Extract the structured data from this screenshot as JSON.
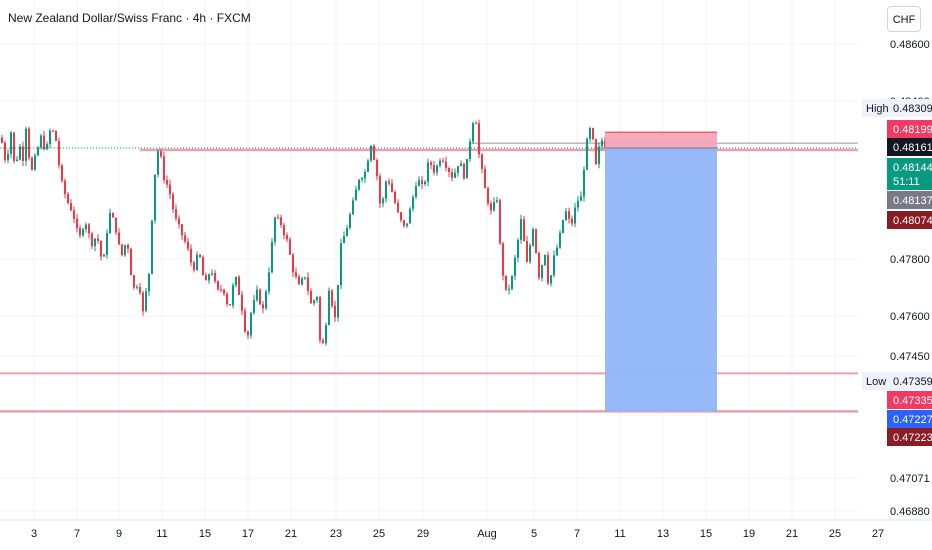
{
  "header": {
    "title": "New Zealand Dollar/Swiss Franc · 4h · FXCM",
    "currency": "CHF"
  },
  "chart_data": {
    "type": "candlestick",
    "ylim": [
      0.4668,
      0.4873
    ],
    "y_ticks": [
      "0.48600",
      "0.48400",
      "0.47800",
      "0.47600",
      "0.47450",
      "0.47071",
      "0.46880"
    ],
    "x_ticks": [
      "3",
      "7",
      "9",
      "11",
      "15",
      "17",
      "21",
      "23",
      "25",
      "29",
      "Aug",
      "5",
      "7",
      "11",
      "13",
      "15",
      "19",
      "21",
      "25",
      "27"
    ],
    "grid": true,
    "candle_colors": {
      "up": "#089981",
      "down": "#f23645"
    },
    "horizontal_lines": [
      {
        "price": 0.48137,
        "color": "#e8a3ac"
      },
      {
        "price": 0.47359,
        "color": "#e8a3ac"
      },
      {
        "price": 0.47227,
        "color": "#e8a3ac"
      }
    ],
    "position": {
      "type": "short",
      "entry": 0.48144,
      "stop": 0.48199,
      "target": 0.47227,
      "stop_color": "#f7a4b8",
      "target_color": "#90b6f9"
    },
    "price_labels": [
      {
        "name": "High",
        "value": "0.48309",
        "style": "high"
      },
      {
        "value": "0.48199",
        "style": "stop"
      },
      {
        "value": "0.48161",
        "style": "black"
      },
      {
        "value": "0.48144",
        "countdown": "51:11",
        "style": "current"
      },
      {
        "value": "0.48137",
        "style": "gray"
      },
      {
        "value": "0.48074",
        "style": "darkred"
      },
      {
        "name": "Low",
        "value": "0.47359",
        "style": "low"
      },
      {
        "value": "0.47335",
        "style": "stop"
      },
      {
        "value": "0.47227",
        "style": "target"
      },
      {
        "value": "0.47223",
        "style": "darkred"
      }
    ],
    "price_path": [
      [
        0,
        0.4818
      ],
      [
        5,
        0.4809
      ],
      [
        10,
        0.482
      ],
      [
        14,
        0.4806
      ],
      [
        18,
        0.4816
      ],
      [
        22,
        0.4811
      ],
      [
        25,
        0.4822
      ],
      [
        30,
        0.4805
      ],
      [
        35,
        0.4812
      ],
      [
        40,
        0.4818
      ],
      [
        45,
        0.4813
      ],
      [
        50,
        0.4822
      ],
      [
        55,
        0.4817
      ],
      [
        60,
        0.4803
      ],
      [
        66,
        0.4796
      ],
      [
        72,
        0.4792
      ],
      [
        78,
        0.4782
      ],
      [
        84,
        0.479
      ],
      [
        90,
        0.4781
      ],
      [
        96,
        0.4784
      ],
      [
        102,
        0.4773
      ],
      [
        108,
        0.4792
      ],
      [
        114,
        0.4788
      ],
      [
        120,
        0.4776
      ],
      [
        126,
        0.4783
      ],
      [
        132,
        0.4765
      ],
      [
        138,
        0.4768
      ],
      [
        142,
        0.4757
      ],
      [
        148,
        0.4771
      ],
      [
        153,
        0.4803
      ],
      [
        158,
        0.4816
      ],
      [
        162,
        0.4805
      ],
      [
        168,
        0.48
      ],
      [
        174,
        0.479
      ],
      [
        180,
        0.4785
      ],
      [
        186,
        0.478
      ],
      [
        192,
        0.4772
      ],
      [
        198,
        0.4778
      ],
      [
        204,
        0.4766
      ],
      [
        210,
        0.4773
      ],
      [
        216,
        0.4764
      ],
      [
        222,
        0.4766
      ],
      [
        228,
        0.4758
      ],
      [
        234,
        0.477
      ],
      [
        240,
        0.4761
      ],
      [
        246,
        0.4747
      ],
      [
        250,
        0.4757
      ],
      [
        256,
        0.4764
      ],
      [
        262,
        0.4758
      ],
      [
        268,
        0.4772
      ],
      [
        274,
        0.479
      ],
      [
        280,
        0.4788
      ],
      [
        286,
        0.4782
      ],
      [
        292,
        0.4772
      ],
      [
        298,
        0.4766
      ],
      [
        304,
        0.477
      ],
      [
        310,
        0.476
      ],
      [
        316,
        0.4763
      ],
      [
        320,
        0.4742
      ],
      [
        324,
        0.475
      ],
      [
        328,
        0.4766
      ],
      [
        334,
        0.4755
      ],
      [
        340,
        0.478
      ],
      [
        346,
        0.4787
      ],
      [
        352,
        0.4795
      ],
      [
        358,
        0.4804
      ],
      [
        364,
        0.4806
      ],
      [
        370,
        0.4816
      ],
      [
        375,
        0.4808
      ],
      [
        380,
        0.4792
      ],
      [
        386,
        0.4805
      ],
      [
        392,
        0.4798
      ],
      [
        398,
        0.479
      ],
      [
        404,
        0.4786
      ],
      [
        410,
        0.4794
      ],
      [
        416,
        0.4804
      ],
      [
        422,
        0.48
      ],
      [
        428,
        0.481
      ],
      [
        434,
        0.4806
      ],
      [
        440,
        0.4812
      ],
      [
        446,
        0.4808
      ],
      [
        452,
        0.4804
      ],
      [
        458,
        0.481
      ],
      [
        464,
        0.4804
      ],
      [
        470,
        0.482
      ],
      [
        474,
        0.4828
      ],
      [
        478,
        0.4812
      ],
      [
        484,
        0.48
      ],
      [
        490,
        0.4792
      ],
      [
        496,
        0.4797
      ],
      [
        500,
        0.4775
      ],
      [
        505,
        0.4764
      ],
      [
        510,
        0.4767
      ],
      [
        516,
        0.478
      ],
      [
        520,
        0.4789
      ],
      [
        526,
        0.4774
      ],
      [
        532,
        0.4787
      ],
      [
        538,
        0.477
      ],
      [
        544,
        0.4778
      ],
      [
        548,
        0.4765
      ],
      [
        552,
        0.4775
      ],
      [
        558,
        0.4782
      ],
      [
        564,
        0.4793
      ],
      [
        570,
        0.4787
      ],
      [
        576,
        0.4796
      ],
      [
        580,
        0.4797
      ],
      [
        585,
        0.4815
      ],
      [
        590,
        0.4822
      ],
      [
        595,
        0.4808
      ],
      [
        600,
        0.4818
      ],
      [
        604,
        0.48144
      ]
    ]
  }
}
